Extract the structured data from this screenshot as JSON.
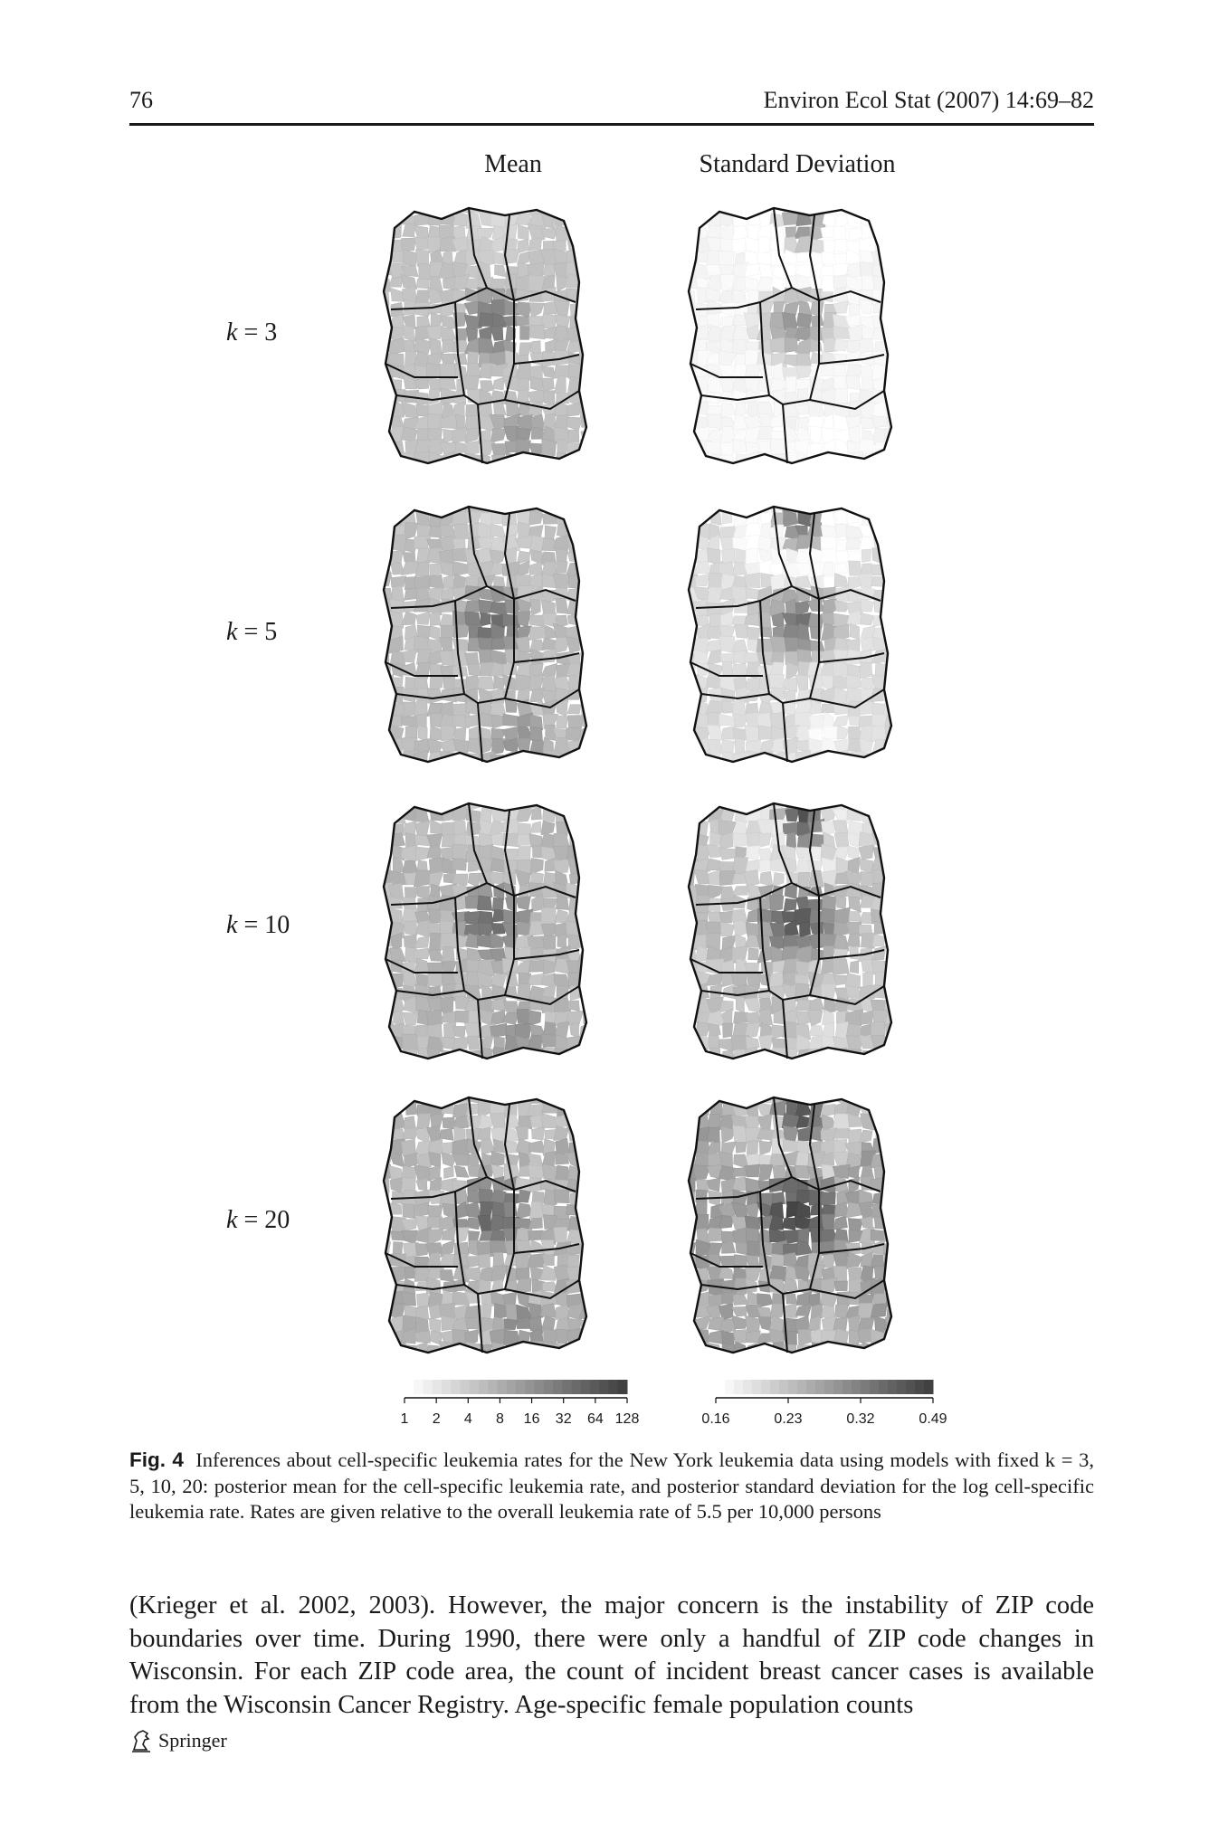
{
  "header": {
    "page_number": "76",
    "journal": "Environ Ecol Stat (2007) 14:69–82"
  },
  "figure": {
    "column_titles": [
      "Mean",
      "Standard Deviation"
    ],
    "rows": [
      {
        "k_var": "k",
        "k_eq": " = 3"
      },
      {
        "k_var": "k",
        "k_eq": " = 5"
      },
      {
        "k_var": "k",
        "k_eq": " = 10"
      },
      {
        "k_var": "k",
        "k_eq": " = 20"
      }
    ],
    "mean_scale_labels": [
      "1",
      "2",
      "4",
      "8",
      "16",
      "32",
      "64",
      "128"
    ],
    "sd_scale_labels": [
      "0.16",
      "0.23",
      "0.32",
      "0.49"
    ]
  },
  "caption": {
    "label": "Fig. 4",
    "text": "Inferences about cell-specific leukemia rates for the New York leukemia data using models with fixed k = 3, 5, 10, 20: posterior mean for the cell-specific leukemia rate, and posterior standard deviation for the log cell-specific leukemia rate. Rates are given relative to the overall leukemia rate of 5.5 per 10,000 persons"
  },
  "body_text": "(Krieger et al. 2002, 2003). However, the major concern is the instability of ZIP code boundaries over time. During 1990, there were only a handful of ZIP code changes in Wisconsin. For each ZIP code area, the count of incident breast cancer cases is available from the Wisconsin Cancer Registry. Age-specific female population counts",
  "footer": {
    "publisher": "Springer",
    "logo_icon": "springer-horse-icon"
  }
}
